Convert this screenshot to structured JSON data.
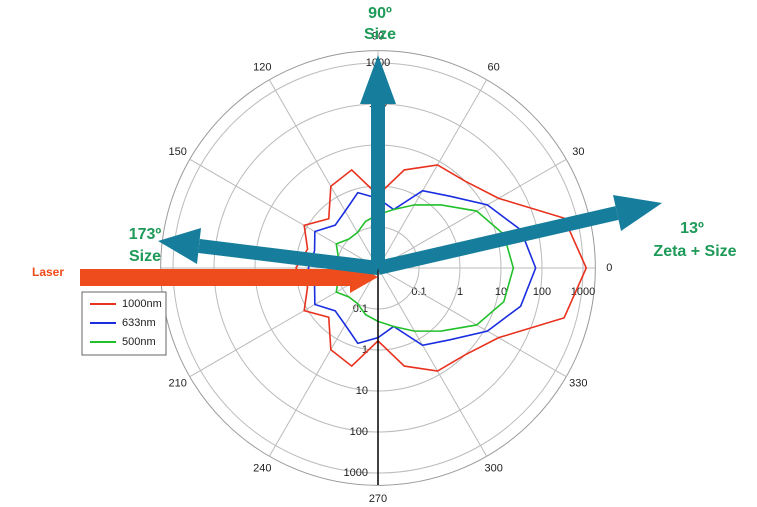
{
  "chart_data": {
    "type": "polar",
    "annotations": {
      "top_angle": "90º",
      "top_label": "Size",
      "right_angle": "13º",
      "right_label": "Zeta + Size",
      "left_angle": "173º",
      "left_label": "Size",
      "laser": "Laser"
    },
    "x": [
      0,
      15,
      30,
      45,
      60,
      75,
      90,
      105,
      120,
      135,
      150,
      165,
      180,
      195,
      210,
      225,
      240,
      255,
      270,
      285,
      300,
      315,
      330,
      345
    ],
    "series": [
      {
        "name": "1000nm",
        "color": "#e8321e",
        "values": [
          1200,
          500,
          25,
          10,
          8,
          3,
          0.6,
          3,
          2,
          0.5,
          1.2,
          0.6,
          1,
          0.6,
          1.2,
          0.5,
          2,
          3,
          0.6,
          3,
          8,
          10,
          25,
          500
        ]
      },
      {
        "name": "633nm",
        "color": "#1a2ee0",
        "values": [
          70,
          40,
          12,
          3,
          1.5,
          0.3,
          0.5,
          0.8,
          0.4,
          0.3,
          0.6,
          0.4,
          0.5,
          0.4,
          0.6,
          0.3,
          0.4,
          0.8,
          0.5,
          0.3,
          1.5,
          3,
          12,
          40
        ]
      },
      {
        "name": "500nm",
        "color": "#22c02a",
        "values": [
          20,
          15,
          6,
          1.5,
          0.6,
          0.3,
          0.2,
          0.15,
          0.1,
          0.1,
          0.15,
          0.1,
          0.1,
          0.1,
          0.15,
          0.1,
          0.1,
          0.15,
          0.2,
          0.3,
          0.6,
          1.5,
          6,
          15
        ]
      }
    ],
    "rlim": [
      0.01,
      2000
    ],
    "rticks": [
      0.1,
      1,
      10,
      100,
      1000
    ],
    "log_r": true,
    "angle_ticks": [
      0,
      30,
      60,
      90,
      120,
      150,
      210,
      240,
      270,
      300,
      330
    ],
    "grid": true
  }
}
